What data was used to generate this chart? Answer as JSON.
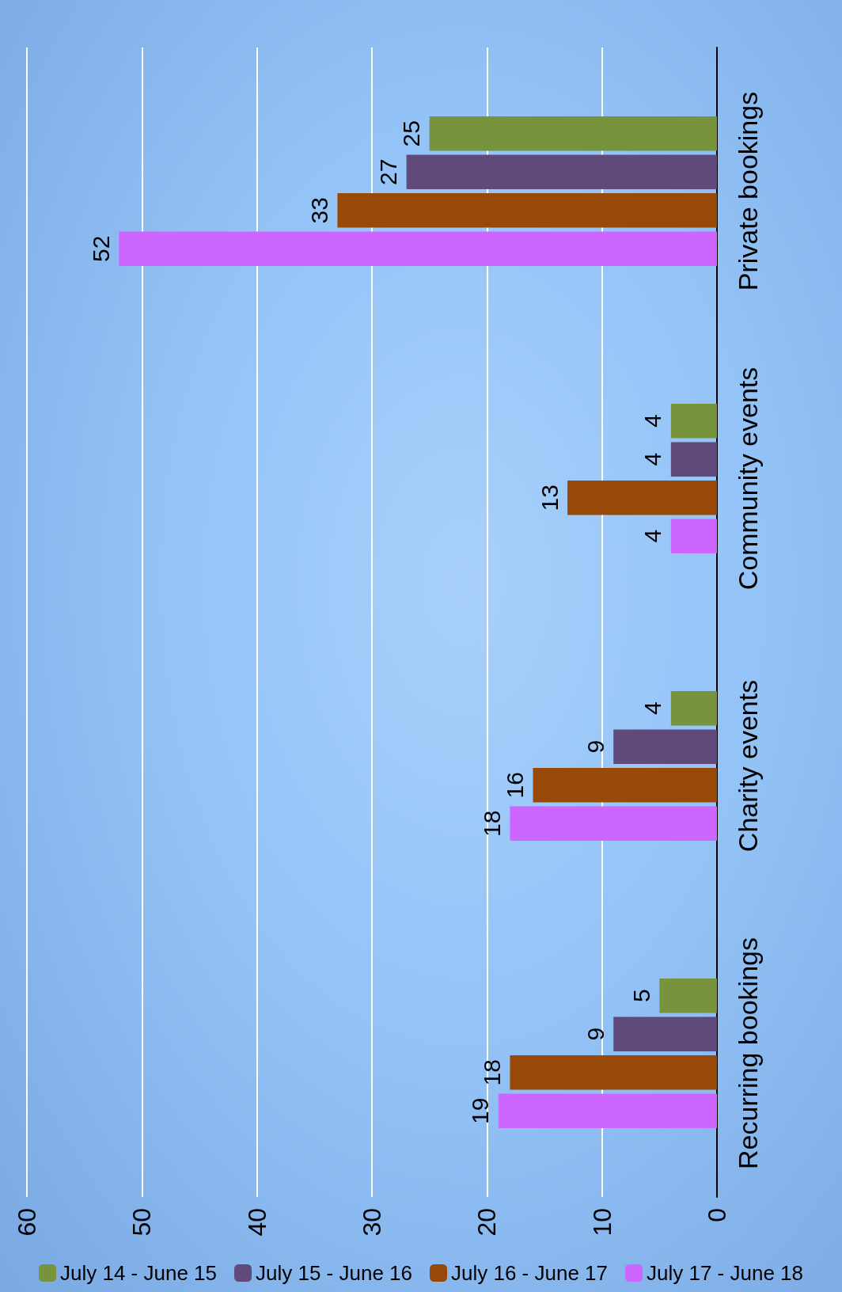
{
  "chart_data": {
    "type": "bar",
    "orientation": "horizontal",
    "categories": [
      "Private bookings",
      "Community events",
      "Charity events",
      "Recurring bookings"
    ],
    "series": [
      {
        "name": "July 14 - June 15",
        "color": "#77933c",
        "values": [
          25,
          4,
          4,
          5
        ]
      },
      {
        "name": "July 15 - June 16",
        "color": "#604a7b",
        "values": [
          27,
          4,
          9,
          9
        ]
      },
      {
        "name": "July 16 - June 17",
        "color": "#984807",
        "values": [
          33,
          13,
          16,
          18
        ]
      },
      {
        "name": "July 17 - June 18",
        "color": "#cc66ff",
        "values": [
          52,
          4,
          18,
          19
        ]
      }
    ],
    "xlim": [
      60,
      0
    ],
    "xticks": [
      60,
      50,
      40,
      30,
      20,
      10,
      0
    ],
    "grid": "x",
    "legend": "bottom",
    "data_labels": true
  }
}
